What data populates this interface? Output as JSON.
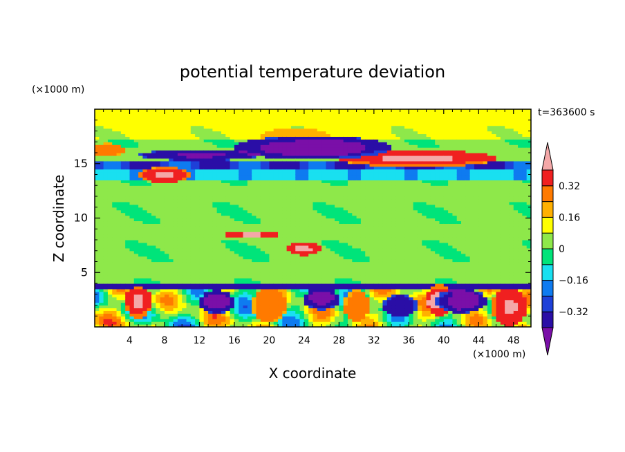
{
  "chart_data": {
    "type": "heatmap",
    "title": "potential temperature deviation",
    "xlabel": "X coordinate",
    "ylabel": "Z coordinate",
    "x_unit": "(×1000 m)",
    "y_unit": "(×1000 m)",
    "time_label": "t=363600 s",
    "xlim": [
      0,
      50
    ],
    "ylim": [
      0,
      20
    ],
    "xticks": [
      4,
      8,
      12,
      16,
      20,
      24,
      28,
      32,
      36,
      40,
      44,
      48
    ],
    "yticks": [
      5,
      10,
      15
    ],
    "colorbar": {
      "levels": [
        -0.48,
        -0.4,
        -0.32,
        -0.24,
        -0.16,
        -0.08,
        0,
        0.08,
        0.16,
        0.24,
        0.32,
        0.4
      ],
      "colors": [
        "#7a0fa8",
        "#2a0ea6",
        "#1e40d8",
        "#0e7bf0",
        "#19e0f0",
        "#00e47a",
        "#8ee84a",
        "#ffff00",
        "#ffb000",
        "#ff7a00",
        "#f02020",
        "#f4a8a8"
      ],
      "labels": [
        "0.32",
        "0.16",
        "0",
        "-0.16",
        "-0.32"
      ],
      "label_values": [
        0.32,
        0.16,
        0,
        -0.16,
        -0.32
      ]
    },
    "features": [
      {
        "kind": "blob",
        "x": 37,
        "y": 15.5,
        "rx": 9,
        "ry": 0.8,
        "value": 0.42
      },
      {
        "kind": "blob",
        "x": 8,
        "y": 14,
        "rx": 3,
        "ry": 0.7,
        "value": 0.42
      },
      {
        "kind": "blob",
        "x": 1.5,
        "y": 16.3,
        "rx": 2,
        "ry": 0.6,
        "value": 0.3
      },
      {
        "kind": "blob",
        "x": 23,
        "y": 17.5,
        "rx": 4,
        "ry": 0.8,
        "value": 0.2
      },
      {
        "kind": "blob",
        "x": 25,
        "y": 16.5,
        "rx": 9,
        "ry": 1.1,
        "value": -0.46
      },
      {
        "kind": "blob",
        "x": 12,
        "y": 15.8,
        "rx": 7,
        "ry": 0.5,
        "value": -0.42
      },
      {
        "kind": "blob",
        "x": 18,
        "y": 8.5,
        "rx": 3,
        "ry": 0.35,
        "value": 0.42
      },
      {
        "kind": "blob",
        "x": 24,
        "y": 7.2,
        "rx": 2,
        "ry": 0.6,
        "value": 0.42
      },
      {
        "kind": "blob",
        "x": 5,
        "y": 2.3,
        "rx": 1.5,
        "ry": 1.5,
        "value": 0.42
      },
      {
        "kind": "blob",
        "x": 47.5,
        "y": 1.8,
        "rx": 2,
        "ry": 1.8,
        "value": 0.42
      },
      {
        "kind": "blob",
        "x": 39.5,
        "y": 2.5,
        "rx": 1.5,
        "ry": 1.5,
        "value": 0.42
      },
      {
        "kind": "blob",
        "x": 20,
        "y": 2,
        "rx": 2,
        "ry": 1.5,
        "value": 0.32
      },
      {
        "kind": "blob",
        "x": 30,
        "y": 2,
        "rx": 1.5,
        "ry": 1.5,
        "value": 0.32
      },
      {
        "kind": "blob",
        "x": 14,
        "y": 2.3,
        "rx": 2,
        "ry": 1.1,
        "value": -0.46
      },
      {
        "kind": "blob",
        "x": 26,
        "y": 2.6,
        "rx": 2,
        "ry": 1,
        "value": -0.46
      },
      {
        "kind": "blob",
        "x": 42,
        "y": 2.4,
        "rx": 3,
        "ry": 1.1,
        "value": -0.46
      },
      {
        "kind": "blob",
        "x": 35,
        "y": 2,
        "rx": 2,
        "ry": 1.1,
        "value": -0.4
      }
    ]
  }
}
